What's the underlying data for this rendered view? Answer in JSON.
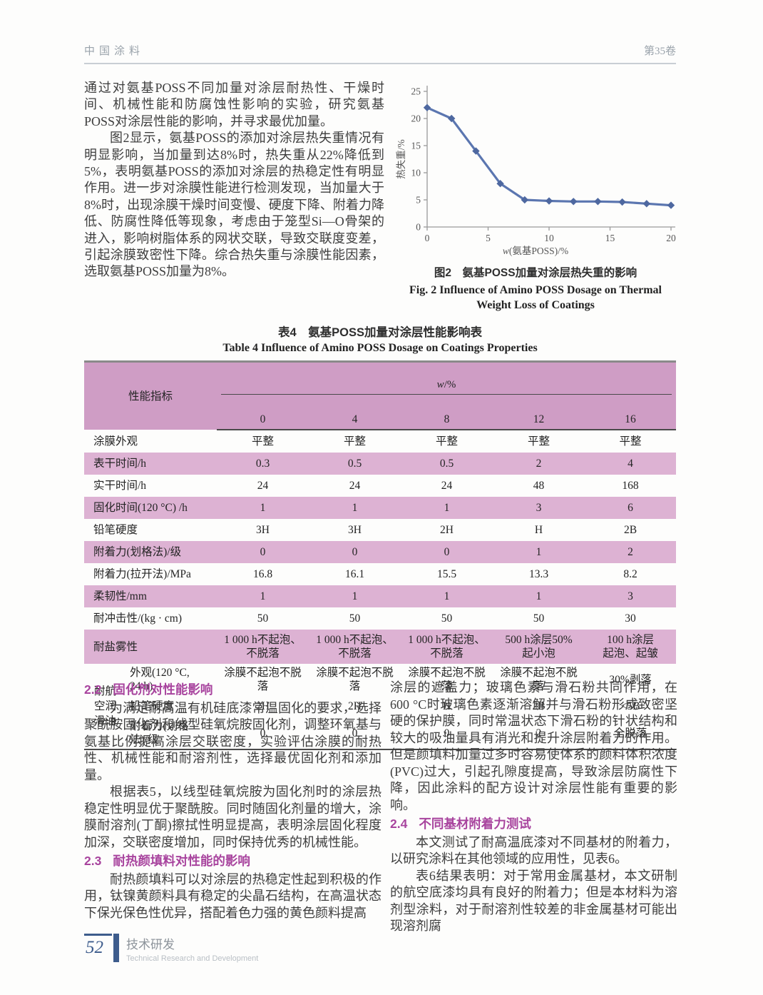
{
  "header": {
    "journal": "中国涂料",
    "volume": "第35卷"
  },
  "intro": {
    "para1": "通过对氨基POSS不同加量对涂层耐热性、干燥时间、机械性能和防腐蚀性影响的实验，研究氨基POSS对涂层性能的影响，并寻求最优加量。",
    "para2": "图2显示，氨基POSS的添加对涂层热失重情况有明显影响，当加量到达8%时，热失重从22%降低到5%，表明氨基POSS的添加对涂层的热稳定性有明显作用。进一步对涂膜性能进行检测发现，当加量大于8%时，出现涂膜干燥时间变慢、硬度下降、附着力降低、防腐性降低等现象，考虑由于笼型Si—O骨架的进入，影响树脂体系的网状交联，导致交联度变差，引起涂膜致密性下降。综合热失重与涂膜性能因素，选取氨基POSS加量为8%。"
  },
  "chart_data": {
    "type": "line",
    "x": [
      0,
      2,
      4,
      6,
      8,
      10,
      12,
      14,
      16,
      18,
      20
    ],
    "values": [
      22,
      20,
      14,
      8,
      5,
      4.8,
      4.7,
      4.7,
      4.6,
      4.3,
      4
    ],
    "xlabel": "w(氨基POSS)/%",
    "xlabel_italic": "w",
    "xlabel_rest": "(氨基POSS)/%",
    "ylabel": "热失重/%",
    "xlim": [
      0,
      20
    ],
    "ylim": [
      0,
      25
    ],
    "xticks": [
      0,
      5,
      10,
      15,
      20
    ],
    "yticks": [
      0,
      5,
      10,
      15,
      20,
      25
    ],
    "grid": "off",
    "legend": "none",
    "line_color": "#5b76b0",
    "marker_color": "#4e68a0",
    "marker": "diamond"
  },
  "figure": {
    "caption_zh": "图2　氨基POSS加量对涂层热失重的影响",
    "caption_en_line1": "Fig. 2   Influence of Amino POSS Dosage on Thermal",
    "caption_en_line2": "Weight Loss of Coatings"
  },
  "table": {
    "title_zh": "表4　氨基POSS加量对涂层性能影响表",
    "title_en": "Table 4   Influence of Amino POSS Dosage on Coatings Properties",
    "header_label": "性能指标",
    "header_group_italic": "w",
    "header_group_rest": "/%",
    "columns": [
      "0",
      "4",
      "8",
      "12",
      "16"
    ],
    "rows": [
      {
        "label": "涂膜外观",
        "values": [
          "平整",
          "平整",
          "平整",
          "平整",
          "平整"
        ],
        "shade": false,
        "tall": false
      },
      {
        "label": "表干时间/h",
        "values": [
          "0.3",
          "0.5",
          "0.5",
          "2",
          "4"
        ],
        "shade": true,
        "tall": false
      },
      {
        "label": "实干时间/h",
        "values": [
          "24",
          "24",
          "24",
          "48",
          "168"
        ],
        "shade": false,
        "tall": false
      },
      {
        "label": "固化时间(120 °C) /h",
        "values": [
          "1",
          "1",
          "1",
          "3",
          "6"
        ],
        "shade": true,
        "tall": false
      },
      {
        "label": "铅笔硬度",
        "values": [
          "3H",
          "3H",
          "2H",
          "H",
          "2B"
        ],
        "shade": false,
        "tall": false
      },
      {
        "label": "附着力(划格法)/级",
        "values": [
          "0",
          "0",
          "0",
          "1",
          "2"
        ],
        "shade": true,
        "tall": false
      },
      {
        "label": "附着力(拉开法)/MPa",
        "values": [
          "16.8",
          "16.1",
          "15.5",
          "13.3",
          "8.2"
        ],
        "shade": false,
        "tall": false
      },
      {
        "label": "柔韧性/mm",
        "values": [
          "1",
          "1",
          "1",
          "1",
          "3"
        ],
        "shade": true,
        "tall": false
      },
      {
        "label": "耐冲击性/(kg · cm)",
        "values": [
          "50",
          "50",
          "50",
          "50",
          "30"
        ],
        "shade": false,
        "tall": false
      },
      {
        "label": "耐盐雾性",
        "values": [
          "1 000 h不起泡、\n不脱落",
          "1 000 h不起泡、\n不脱落",
          "1 000 h不起泡、\n不脱落",
          "500 h涂层50%\n起小泡",
          "100 h涂层\n起泡、起皱"
        ],
        "shade": true,
        "tall": true
      }
    ],
    "oil_group": {
      "label": "耐航\n空润\n滑油",
      "rows": [
        {
          "label": "外观(120 °C,\n24  h)",
          "values": [
            "涂膜不起泡不脱落",
            "涂膜不起泡不脱落",
            "涂膜不起泡不脱落",
            "涂膜不起泡不脱落",
            "30%剥落"
          ]
        },
        {
          "label": "铅笔硬度",
          "values": [
            "2H",
            "2H",
            "H",
            "2B",
            "<5B"
          ]
        },
        {
          "label": "附着力(划格\n法)/级",
          "values": [
            "0",
            "0",
            "0",
            "2",
            "全脱落"
          ]
        }
      ]
    }
  },
  "sections": {
    "s22": {
      "num": "2.2",
      "title": "固化剂对性能影响"
    },
    "s22_p1": "为满足耐高温有机硅底漆常温固化的要求，选择聚酰胺固化剂和线型硅氧烷胺固化剂，调整环氧基与氨基比例提高涂层交联密度，实验评估涂膜的耐热性、机械性能和耐溶剂性，选择最优固化剂和添加量。",
    "s22_p2": "根据表5，以线型硅氧烷胺为固化剂时的涂层热稳定性明显优于聚酰胺。同时随固化剂量的增大，涂膜耐溶剂(丁酮)擦拭性明显提高，表明涂层固化程度加深，交联密度增加，同时保持优秀的机械性能。",
    "s23": {
      "num": "2.3",
      "title": "耐热颜填料对性能的影响"
    },
    "s23_p1": "耐热颜填料可以对涂层的热稳定性起到积极的作用，钛镍黄颜料具有稳定的尖晶石结构，在高温状态下保光保色性优异，搭配着色力强的黄色颜料提高",
    "right_p1": "涂层的遮盖力；玻璃色素与滑石粉共同作用，在600 °C时玻璃色素逐渐溶解并与滑石粉形成致密坚硬的保护膜，同时常温状态下滑石粉的针状结构和较大的吸油量具有消光和提升涂层附着力的作用。但是颜填料加量过多时容易使体系的颜料体积浓度(PVC)过大，引起孔隙度提高，导致涂层防腐性下降，因此涂料的配方设计对涂层性能有重要的影响。",
    "s24": {
      "num": "2.4",
      "title": "不同基材附着力测试"
    },
    "s24_p1": "本文测试了耐高温底漆对不同基材的附着力，以研究涂料在其他领域的应用性，见表6。",
    "s24_p2": "表6结果表明：对于常用金属基材，本文研制的航空底漆均具有良好的附着力；但是本材料为溶剂型涂料，对于耐溶剂性较差的非金属基材可能出现溶剂腐"
  },
  "footer": {
    "page": "52",
    "section_zh": "技术研发",
    "section_en": "Technical Research and Development"
  }
}
